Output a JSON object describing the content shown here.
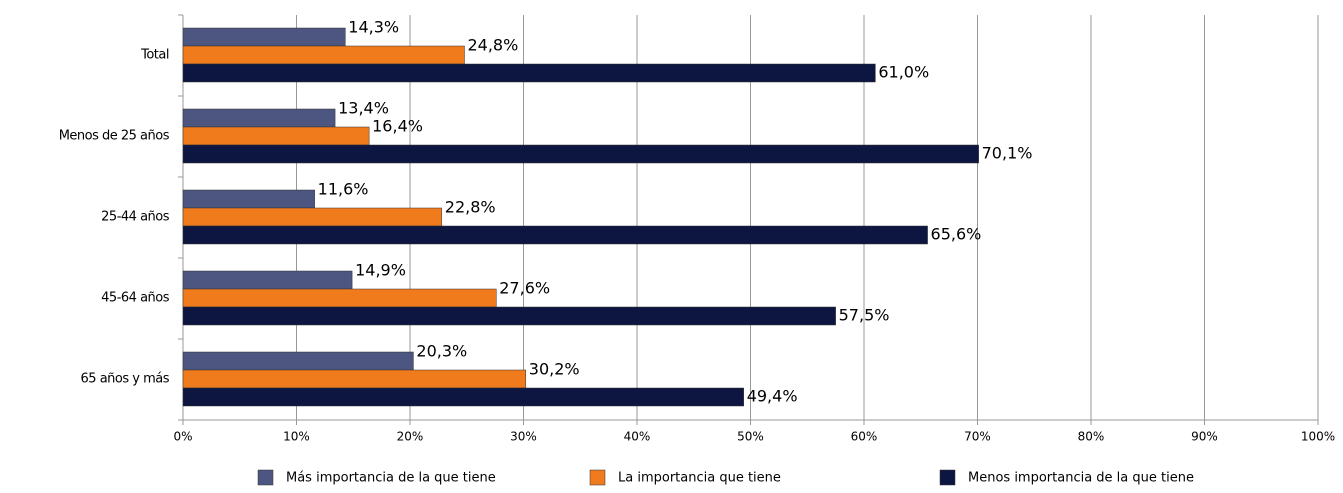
{
  "chart_data": {
    "type": "hbar",
    "categories": [
      "Total",
      "Menos de 25 años",
      "25-44 años",
      "45-64 años",
      "65 años y más"
    ],
    "series": [
      {
        "name": "Más importancia de la que tiene",
        "color": "#4d5680",
        "values": [
          14.3,
          13.4,
          11.6,
          14.9,
          20.3
        ],
        "value_labels": [
          "14,3%",
          "13,4%",
          "11,6%",
          "14,9%",
          "20,3%"
        ]
      },
      {
        "name": "La importancia que tiene",
        "color": "#f07b1c",
        "values": [
          24.8,
          16.4,
          22.8,
          27.6,
          30.2
        ],
        "value_labels": [
          "24,8%",
          "16,4%",
          "22,8%",
          "27,6%",
          "30,2%"
        ]
      },
      {
        "name": "Menos importancia de la que tiene",
        "color": "#0c1640",
        "values": [
          61.0,
          70.1,
          65.6,
          57.5,
          49.4
        ],
        "value_labels": [
          "61,0%",
          "70,1%",
          "65,6%",
          "57,5%",
          "49,4%"
        ]
      }
    ],
    "xlim": [
      0,
      100
    ],
    "xticks": [
      {
        "value": 0,
        "label": "0%"
      },
      {
        "value": 10,
        "label": "10%"
      },
      {
        "value": 20,
        "label": "20%"
      },
      {
        "value": 30,
        "label": "30%"
      },
      {
        "value": 40,
        "label": "40%"
      },
      {
        "value": 50,
        "label": "50%"
      },
      {
        "value": 60,
        "label": "60%"
      },
      {
        "value": 70,
        "label": "70%"
      },
      {
        "value": 80,
        "label": "80%"
      },
      {
        "value": 90,
        "label": "90%"
      },
      {
        "value": 100,
        "label": "100%"
      }
    ],
    "grid": true,
    "legend": "bottom"
  }
}
